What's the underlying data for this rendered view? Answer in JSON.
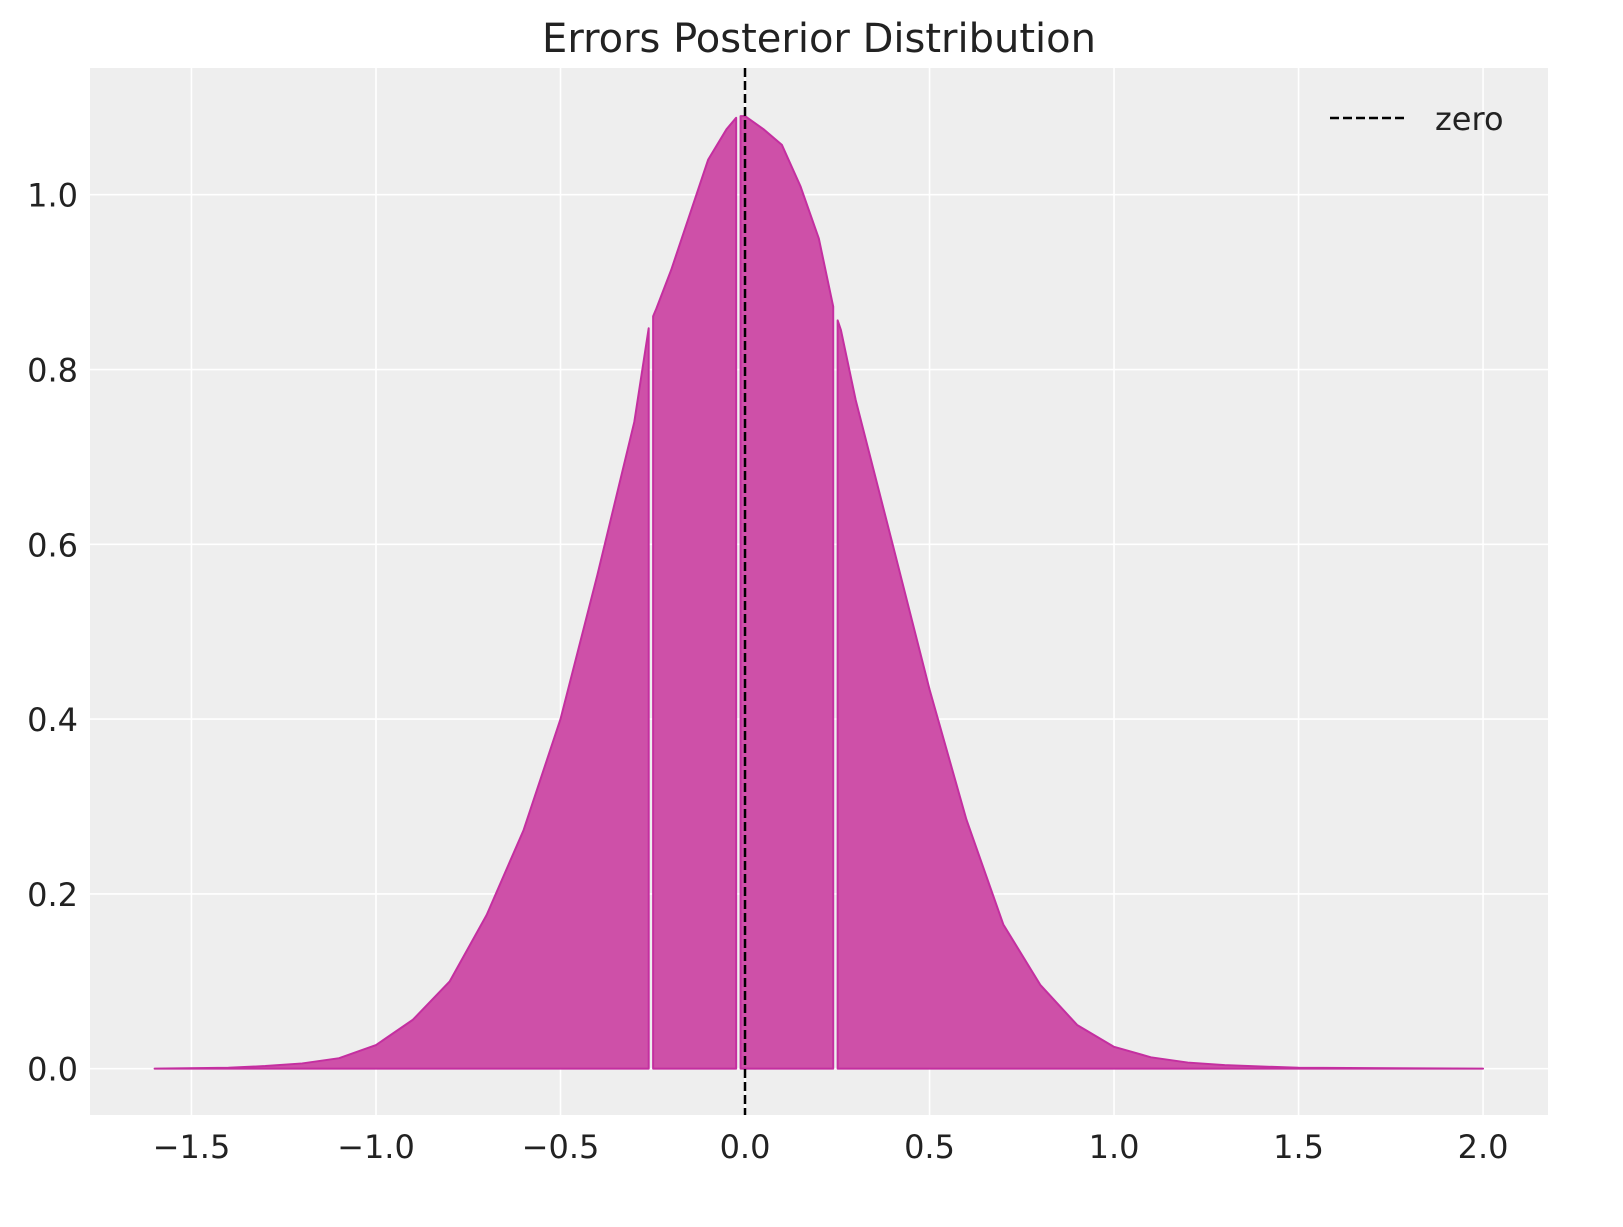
{
  "chart_data": {
    "type": "area",
    "title": "Errors Posterior Distribution",
    "xlabel": "",
    "ylabel": "",
    "xlim": [
      -1.775,
      2.176
    ],
    "ylim": [
      -0.053,
      1.145
    ],
    "grid": true,
    "legend_placement": "top-right",
    "x_ticks": [
      -1.5,
      -1.0,
      -0.5,
      0.0,
      0.5,
      1.0,
      1.5,
      2.0
    ],
    "x_tick_labels": [
      "−1.5",
      "−1.0",
      "−0.5",
      "0.0",
      "0.5",
      "1.0",
      "1.5",
      "2.0"
    ],
    "y_ticks": [
      0.0,
      0.2,
      0.4,
      0.6,
      0.8,
      1.0
    ],
    "y_tick_labels": [
      "0.0",
      "0.2",
      "0.4",
      "0.6",
      "0.8",
      "1.0"
    ],
    "density": {
      "x": [
        -1.6,
        -1.4,
        -1.3,
        -1.2,
        -1.1,
        -1.0,
        -0.9,
        -0.8,
        -0.7,
        -0.6,
        -0.5,
        -0.4,
        -0.3,
        -0.26,
        -0.24,
        -0.2,
        -0.1,
        -0.05,
        -0.02,
        0.0,
        0.05,
        0.1,
        0.15,
        0.2,
        0.24,
        0.26,
        0.3,
        0.4,
        0.5,
        0.6,
        0.7,
        0.8,
        0.9,
        1.0,
        1.1,
        1.2,
        1.3,
        1.5,
        2.0
      ],
      "y": [
        0.0,
        0.001,
        0.003,
        0.006,
        0.012,
        0.027,
        0.056,
        0.1,
        0.176,
        0.273,
        0.4,
        0.565,
        0.74,
        0.85,
        0.87,
        0.914,
        1.04,
        1.075,
        1.09,
        1.09,
        1.075,
        1.057,
        1.01,
        0.95,
        0.87,
        0.845,
        0.765,
        0.6,
        0.434,
        0.285,
        0.165,
        0.096,
        0.05,
        0.025,
        0.013,
        0.007,
        0.004,
        0.001,
        0.0
      ]
    },
    "quantile_separators": [
      -0.255,
      -0.018,
      0.245
    ],
    "reference_line": {
      "x": 0.0,
      "style": "dashed",
      "color": "#000000",
      "name": "zero"
    },
    "legend": [
      {
        "label": "zero",
        "style": "dashed",
        "color": "#000000"
      }
    ],
    "colors": {
      "fill": "#ce50a8",
      "edge": "#c42fa0",
      "background": "#eeeeee",
      "grid": "#ffffff"
    }
  }
}
